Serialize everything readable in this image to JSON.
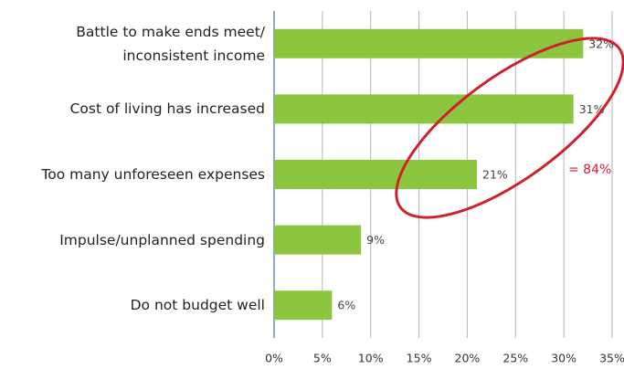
{
  "chart_data": {
    "type": "bar",
    "orientation": "horizontal",
    "categories": [
      "Battle to make ends meet/\ninconsistent income",
      "Cost of living has increased",
      "Too many unforeseen expenses",
      "Impulse/unplanned spending",
      "Do not budget well"
    ],
    "values": [
      32,
      31,
      21,
      9,
      6
    ],
    "value_labels": [
      "32%",
      "31%",
      "21%",
      "9%",
      "6%"
    ],
    "color": "#8cc63e",
    "xlim": [
      0,
      35
    ],
    "xticks": [
      {
        "value": 0,
        "label": "0%"
      },
      {
        "value": 5,
        "label": "5%"
      },
      {
        "value": 10,
        "label": "10%"
      },
      {
        "value": 15,
        "label": "15%"
      },
      {
        "value": 20,
        "label": "20%"
      },
      {
        "value": 25,
        "label": "25%"
      },
      {
        "value": 30,
        "label": "30%"
      },
      {
        "value": 35,
        "label": "35%"
      }
    ],
    "grid": true,
    "annotation": "= 84%",
    "annotation_color": "#d0202e"
  }
}
